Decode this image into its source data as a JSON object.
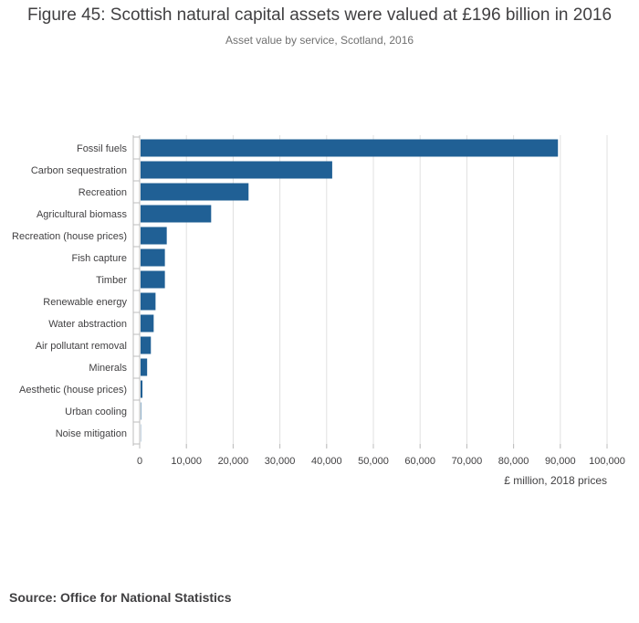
{
  "title": "Figure 45: Scottish natural capital assets were valued at £196 billion in 2016",
  "subtitle": "Asset value by service, Scotland, 2016",
  "source": "Source: Office for National Statistics",
  "colors": {
    "bar": "#206095",
    "grid": "#e0e0e0",
    "axis": "#bcbcbc",
    "text": "#414042"
  },
  "chart_data": {
    "type": "bar",
    "orientation": "horizontal",
    "categories": [
      "Fossil fuels",
      "Carbon sequestration",
      "Recreation",
      "Agricultural biomass",
      "Recreation (house prices)",
      "Fish capture",
      "Timber",
      "Renewable energy",
      "Water abstraction",
      "Air pollutant removal",
      "Minerals",
      "Aesthetic (house prices)",
      "Urban cooling",
      "Noise mitigation"
    ],
    "values": [
      89300,
      41000,
      23100,
      15100,
      5600,
      5200,
      5200,
      3200,
      2800,
      2200,
      1400,
      400,
      100,
      50
    ],
    "xlabel": "£ million, 2018 prices",
    "ylabel": "",
    "xlim": [
      0,
      100000
    ],
    "xticks": [
      0,
      10000,
      20000,
      30000,
      40000,
      50000,
      60000,
      70000,
      80000,
      90000,
      100000
    ],
    "xtick_labels": [
      "0",
      "10,000",
      "20,000",
      "30,000",
      "40,000",
      "50,000",
      "60,000",
      "70,000",
      "80,000",
      "90,000",
      "100,000"
    ],
    "grid": true,
    "legend": "none"
  }
}
